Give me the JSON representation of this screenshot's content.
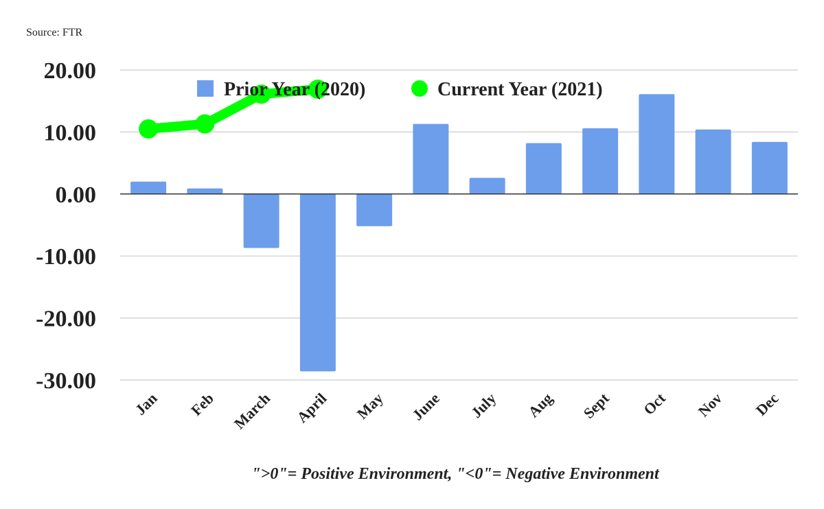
{
  "source_text": "Source: FTR",
  "note_text": "\">0\"= Positive Environment, \"<0\"= Negative Environment",
  "chart_data": {
    "type": "bar",
    "categories": [
      "Jan",
      "Feb",
      "March",
      "April",
      "May",
      "June",
      "July",
      "Aug",
      "Sept",
      "Oct",
      "Nov",
      "Dec"
    ],
    "ylim": [
      -30,
      20
    ],
    "yticks": [
      20,
      10,
      0,
      -10,
      -20,
      -30
    ],
    "ytick_labels": [
      "20.00",
      "10.00",
      "0.00",
      "-10.00",
      "-20.00",
      "-30.00"
    ],
    "grid": true,
    "legend_position": "top",
    "series": [
      {
        "name": "Prior Year (2020)",
        "kind": "bar",
        "color": "#6d9eeb",
        "values": [
          2.0,
          0.9,
          -8.7,
          -28.6,
          -5.2,
          11.3,
          2.6,
          8.2,
          10.6,
          16.1,
          10.4,
          8.4
        ]
      },
      {
        "name": "Current Year (2021)",
        "kind": "line",
        "color": "#00ff00",
        "values": [
          10.5,
          11.3,
          16.1,
          16.9,
          null,
          null,
          null,
          null,
          null,
          null,
          null,
          null
        ]
      }
    ]
  }
}
